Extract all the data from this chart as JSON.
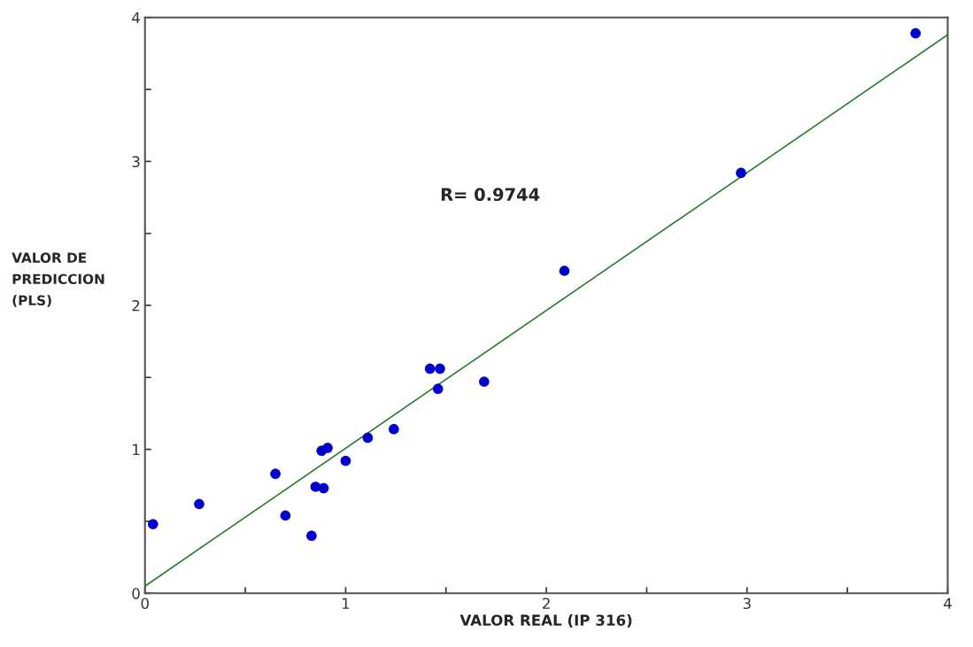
{
  "chart_data": {
    "type": "scatter",
    "xlabel": "VALOR REAL (IP 316)",
    "ylabel": "VALOR DE\nPREDICCION\n(PLS)",
    "annotations": [
      "R= 0.9744"
    ],
    "series": [
      {
        "color": "#0000cc",
        "marker": "circle",
        "x": [
          0.04,
          0.27,
          0.65,
          0.7,
          0.83,
          0.85,
          0.89,
          0.88,
          0.91,
          1.0,
          1.11,
          1.24,
          1.42,
          1.47,
          1.46,
          1.69,
          2.09,
          2.97,
          3.84
        ],
        "values": [
          0.48,
          0.62,
          0.83,
          0.54,
          0.4,
          0.74,
          0.73,
          0.99,
          1.01,
          0.92,
          1.08,
          1.14,
          1.56,
          1.56,
          1.42,
          1.47,
          2.24,
          2.92,
          3.89
        ]
      },
      {
        "type": "line",
        "color": "#2e7d32",
        "x": [
          0,
          4
        ],
        "values": [
          0.05,
          3.88
        ]
      }
    ],
    "xlim": [
      0,
      4
    ],
    "ylim": [
      0,
      4
    ],
    "xticks": [
      0,
      {
        "value": 0.5,
        "label": null
      },
      1,
      {
        "value": 1.5,
        "label": null
      },
      2,
      {
        "value": 2.5,
        "label": null
      },
      3,
      {
        "value": 3.5,
        "label": null
      },
      4
    ],
    "yticks": [
      0,
      {
        "value": 0.5,
        "label": null
      },
      1,
      {
        "value": 1.5,
        "label": null
      },
      2,
      {
        "value": 2.5,
        "label": null
      },
      3,
      {
        "value": 3.5,
        "label": null
      },
      4
    ],
    "grid": false,
    "legend": false
  }
}
